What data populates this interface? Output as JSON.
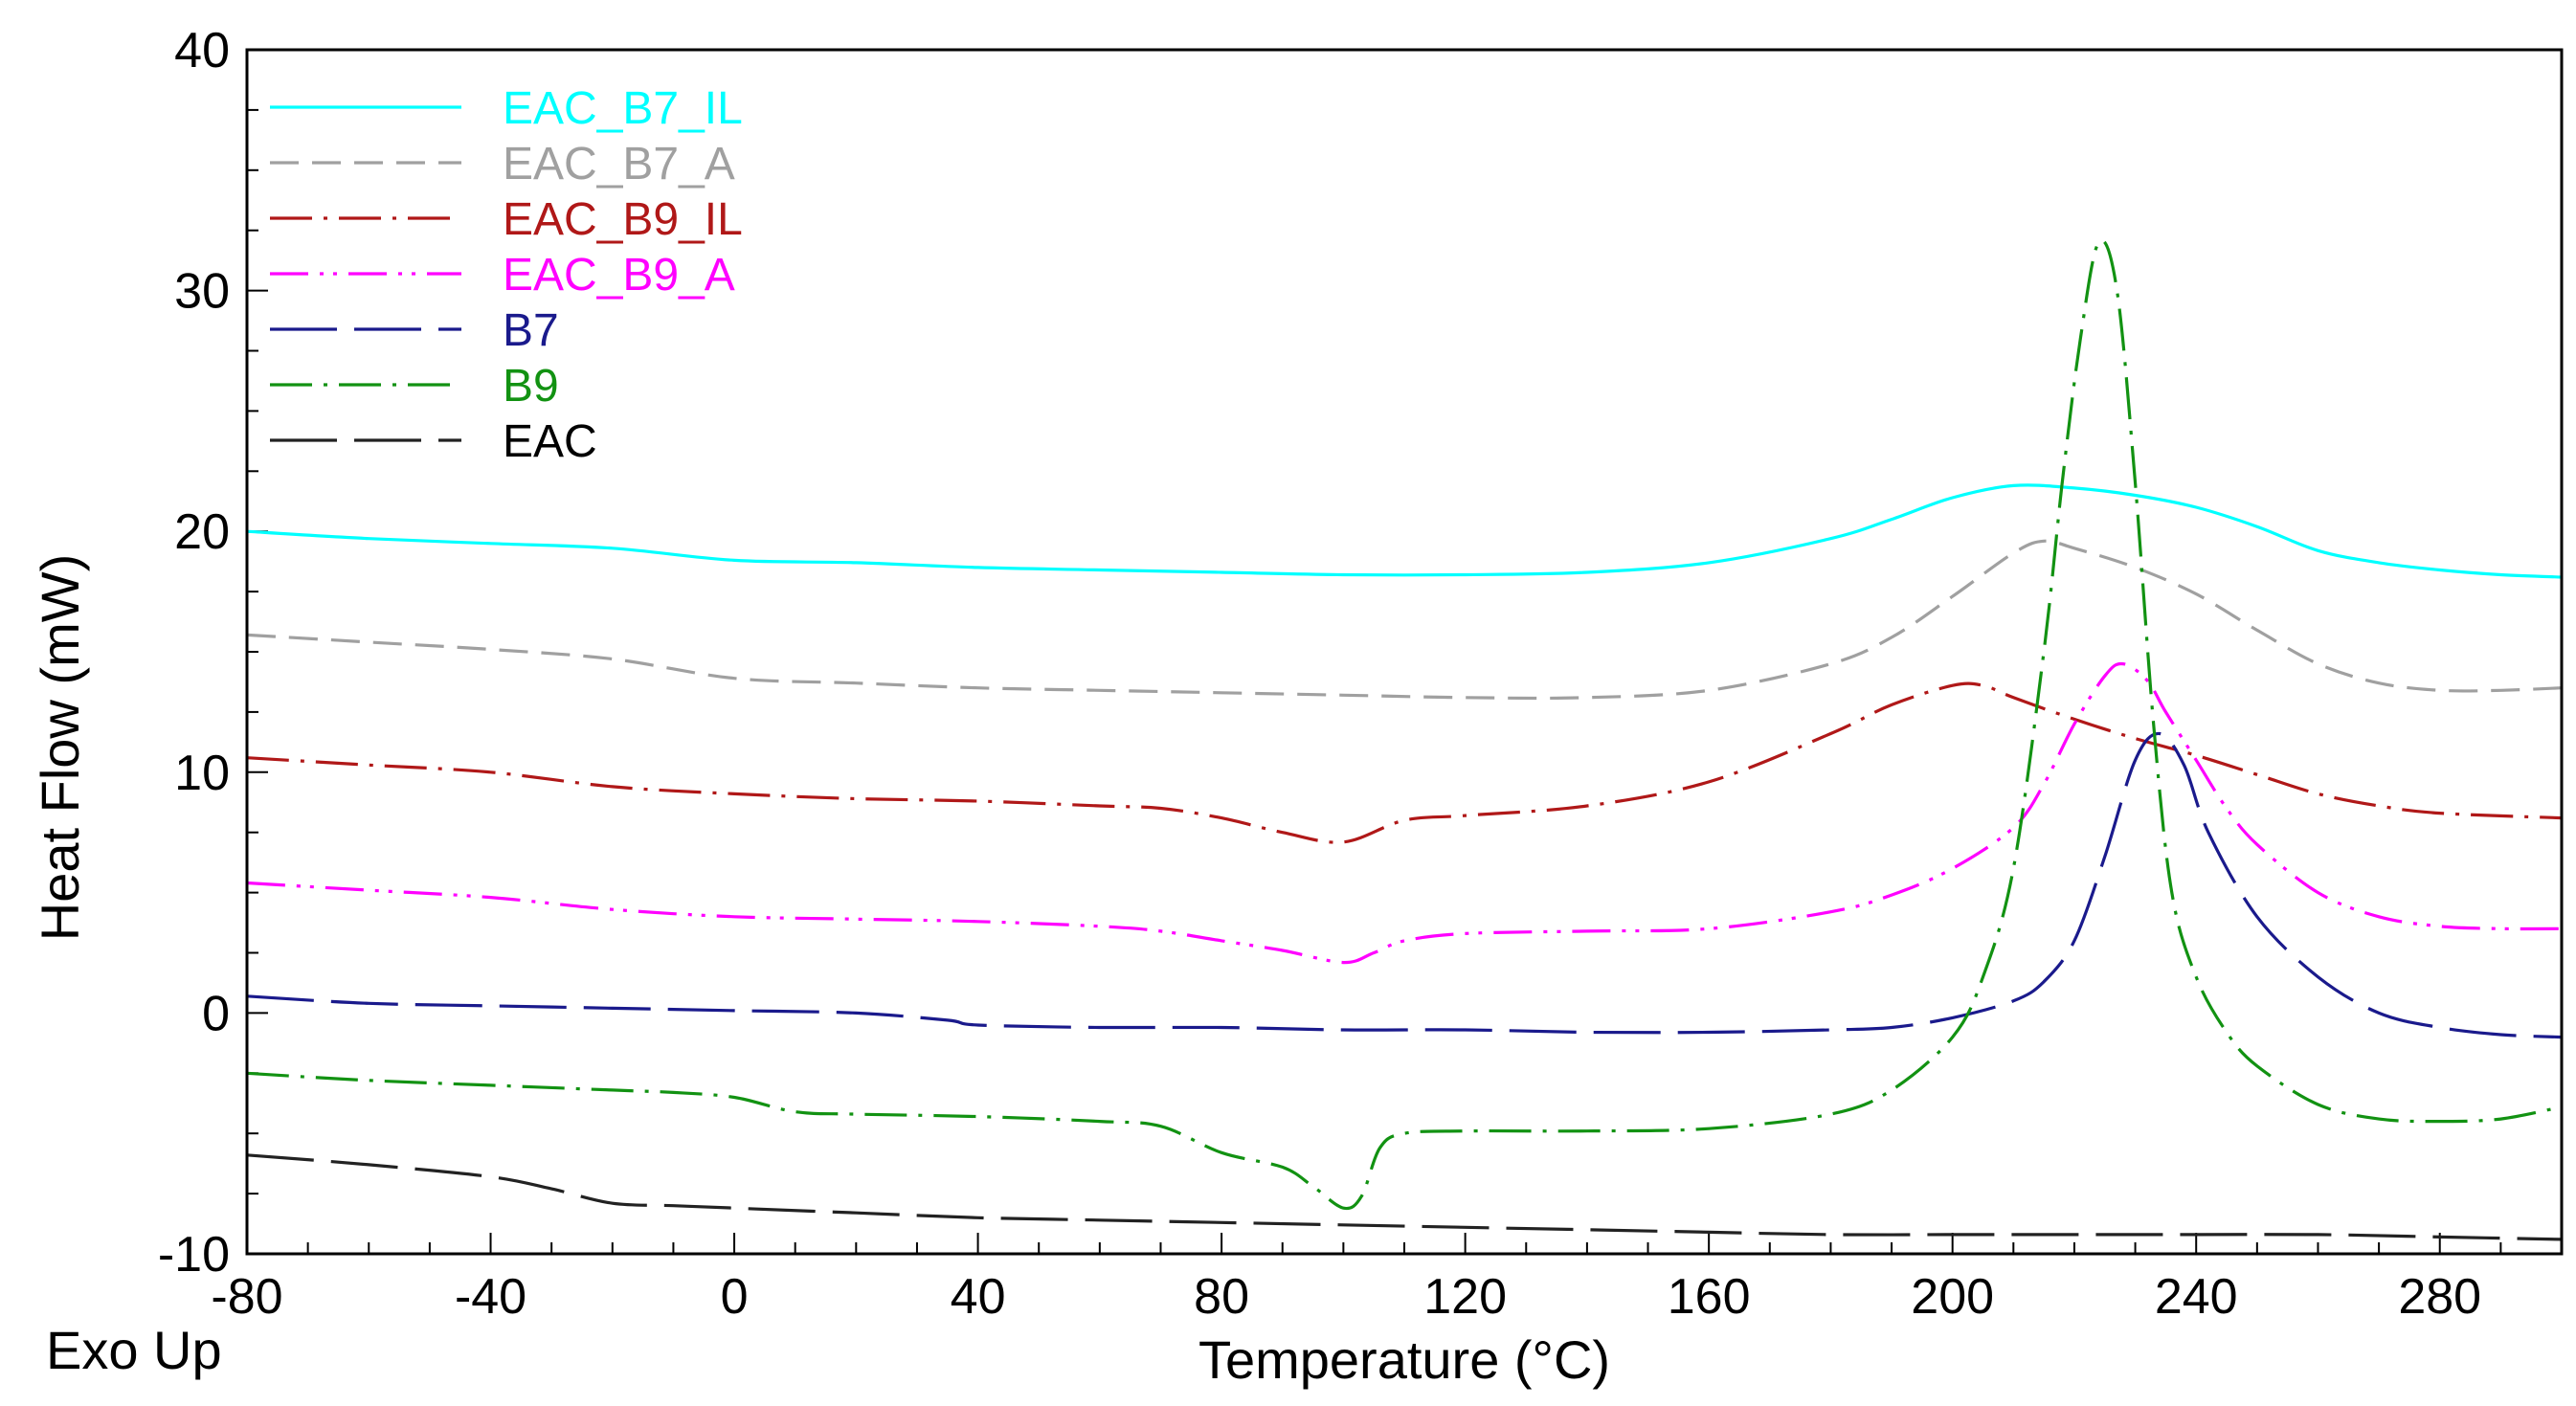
{
  "chart_data": {
    "type": "line",
    "title": "",
    "xlabel": "Temperature (°C)",
    "ylabel": "Heat Flow (mW)",
    "corner_note": "Exo Up",
    "xlim": [
      -80,
      300
    ],
    "ylim": [
      -10,
      40
    ],
    "xticks": [
      -80,
      -40,
      0,
      40,
      80,
      120,
      160,
      200,
      240,
      280
    ],
    "yticks": [
      -10,
      0,
      10,
      20,
      30,
      40
    ],
    "legend_position": "top-left",
    "series": [
      {
        "name": "EAC_B7_IL",
        "color": "#00FFFF",
        "dash": "solid",
        "x": [
          -80,
          -60,
          -40,
          -20,
          0,
          20,
          40,
          60,
          80,
          100,
          120,
          140,
          160,
          180,
          190,
          200,
          210,
          220,
          230,
          240,
          250,
          260,
          270,
          280,
          290,
          300
        ],
        "y": [
          20,
          19.7,
          19.5,
          19.3,
          18.8,
          18.7,
          18.5,
          18.4,
          18.3,
          18.2,
          18.2,
          18.3,
          18.7,
          19.7,
          20.5,
          21.4,
          21.9,
          21.8,
          21.5,
          21,
          20.2,
          19.2,
          18.7,
          18.4,
          18.2,
          18.1
        ]
      },
      {
        "name": "EAC_B7_A",
        "color": "#A0A0A0",
        "dash": "dashed",
        "x": [
          -80,
          -60,
          -40,
          -20,
          0,
          20,
          40,
          60,
          80,
          100,
          120,
          140,
          160,
          180,
          190,
          200,
          210,
          215,
          220,
          230,
          240,
          250,
          260,
          270,
          280,
          290,
          300
        ],
        "y": [
          15.7,
          15.4,
          15.1,
          14.7,
          13.9,
          13.7,
          13.5,
          13.4,
          13.3,
          13.2,
          13.1,
          13.1,
          13.4,
          14.5,
          15.6,
          17.3,
          19.1,
          19.6,
          19.3,
          18.5,
          17.4,
          15.9,
          14.5,
          13.7,
          13.4,
          13.4,
          13.5
        ]
      },
      {
        "name": "EAC_B9_IL",
        "color": "#B01818",
        "dash": "dash-dot",
        "x": [
          -80,
          -60,
          -40,
          -20,
          0,
          20,
          40,
          60,
          70,
          80,
          90,
          100,
          110,
          120,
          140,
          160,
          180,
          190,
          200,
          205,
          210,
          220,
          230,
          240,
          250,
          260,
          270,
          280,
          300
        ],
        "y": [
          10.6,
          10.3,
          10,
          9.4,
          9.1,
          8.9,
          8.8,
          8.6,
          8.5,
          8.1,
          7.5,
          7.1,
          8,
          8.2,
          8.6,
          9.6,
          11.6,
          12.8,
          13.6,
          13.6,
          13.1,
          12.2,
          11.4,
          10.7,
          9.9,
          9.1,
          8.6,
          8.3,
          8.1
        ]
      },
      {
        "name": "EAC_B9_A",
        "color": "#FF00FF",
        "dash": "dash-dot-dot",
        "x": [
          -80,
          -60,
          -40,
          -20,
          0,
          20,
          40,
          60,
          70,
          80,
          90,
          100,
          105,
          110,
          120,
          140,
          160,
          180,
          190,
          200,
          210,
          215,
          220,
          225,
          228,
          232,
          235,
          240,
          245,
          250,
          260,
          270,
          280,
          290,
          300
        ],
        "y": [
          5.4,
          5.1,
          4.8,
          4.3,
          4,
          3.9,
          3.8,
          3.6,
          3.4,
          3,
          2.6,
          2.1,
          2.5,
          3,
          3.3,
          3.4,
          3.5,
          4.2,
          4.9,
          6,
          7.7,
          9.5,
          12,
          14,
          14.5,
          13.8,
          12.5,
          10.5,
          8.5,
          7,
          5,
          4,
          3.6,
          3.5,
          3.5
        ]
      },
      {
        "name": "B7",
        "color": "#1A1A8C",
        "dash": "long-dash",
        "x": [
          -80,
          -60,
          -40,
          -20,
          0,
          20,
          35,
          40,
          60,
          80,
          100,
          120,
          140,
          160,
          180,
          190,
          200,
          210,
          215,
          220,
          225,
          230,
          234,
          238,
          242,
          250,
          260,
          270,
          280,
          290,
          300
        ],
        "y": [
          0.7,
          0.4,
          0.3,
          0.2,
          0.1,
          0,
          -0.3,
          -0.5,
          -0.6,
          -0.6,
          -0.7,
          -0.7,
          -0.8,
          -0.8,
          -0.7,
          -0.6,
          -0.2,
          0.5,
          1.3,
          3,
          6.5,
          10.5,
          11.6,
          10.3,
          7.5,
          4,
          1.5,
          0,
          -0.6,
          -0.9,
          -1
        ]
      },
      {
        "name": "B9",
        "color": "#129212",
        "dash": "dash-dot",
        "x": [
          -80,
          -60,
          -40,
          -20,
          -10,
          0,
          10,
          20,
          40,
          60,
          70,
          80,
          90,
          95,
          100,
          103,
          106,
          110,
          120,
          140,
          160,
          180,
          190,
          200,
          205,
          210,
          215,
          218,
          221,
          224,
          227,
          230,
          233,
          236,
          240,
          245,
          250,
          260,
          270,
          280,
          290,
          300
        ],
        "y": [
          -2.5,
          -2.8,
          -3,
          -3.2,
          -3.3,
          -3.5,
          -4.1,
          -4.2,
          -4.3,
          -4.5,
          -4.7,
          -5.8,
          -6.4,
          -7.2,
          -8.1,
          -7.6,
          -5.6,
          -5,
          -4.9,
          -4.9,
          -4.8,
          -4.2,
          -3.2,
          -1,
          1.5,
          6,
          15,
          22,
          28,
          32,
          30,
          22,
          12,
          5,
          1.5,
          -0.8,
          -2.2,
          -3.8,
          -4.4,
          -4.5,
          -4.4,
          -3.9
        ]
      },
      {
        "name": "EAC",
        "color": "#222222",
        "dash": "long-dash",
        "x": [
          -80,
          -60,
          -40,
          -30,
          -20,
          -10,
          0,
          20,
          40,
          60,
          80,
          100,
          120,
          140,
          160,
          180,
          200,
          220,
          240,
          260,
          280,
          300
        ],
        "y": [
          -5.9,
          -6.3,
          -6.8,
          -7.3,
          -7.9,
          -8,
          -8.1,
          -8.3,
          -8.5,
          -8.6,
          -8.7,
          -8.8,
          -8.9,
          -9,
          -9.1,
          -9.2,
          -9.2,
          -9.2,
          -9.2,
          -9.2,
          -9.3,
          -9.4
        ]
      }
    ]
  }
}
